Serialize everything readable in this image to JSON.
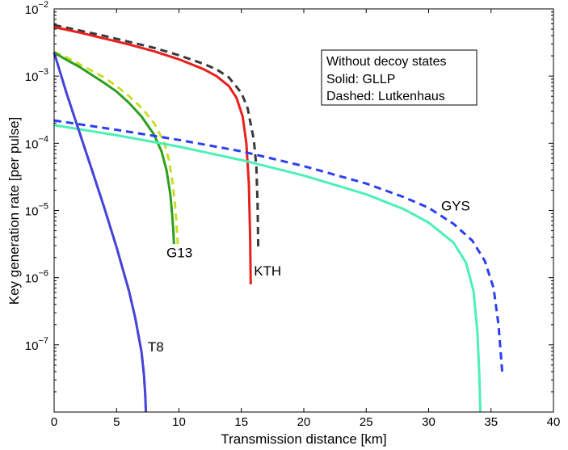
{
  "chart_data": {
    "type": "line",
    "title": "",
    "xlabel": "Transmission distance [km]",
    "ylabel": "Key generation rate [per pulse]",
    "xlim": [
      0,
      40
    ],
    "ylim_log10": [
      -8,
      -2
    ],
    "yscale": "log",
    "grid": false,
    "x_ticks": [
      {
        "value": 0,
        "label": "0"
      },
      {
        "value": 5,
        "label": "5"
      },
      {
        "value": 10,
        "label": "10"
      },
      {
        "value": 15,
        "label": "15"
      },
      {
        "value": 20,
        "label": "20"
      },
      {
        "value": 25,
        "label": "25"
      },
      {
        "value": 30,
        "label": "30"
      },
      {
        "value": 35,
        "label": "35"
      },
      {
        "value": 40,
        "label": "40"
      }
    ],
    "y_ticks": [
      {
        "exp": -2,
        "base": "10",
        "power": "−2"
      },
      {
        "exp": -3,
        "base": "10",
        "power": "−3"
      },
      {
        "exp": -4,
        "base": "10",
        "power": "−4"
      },
      {
        "exp": -5,
        "base": "10",
        "power": "−5"
      },
      {
        "exp": -6,
        "base": "10",
        "power": "−6"
      },
      {
        "exp": -7,
        "base": "10",
        "power": "−7"
      }
    ],
    "legend": {
      "placement": "top-right",
      "lines": [
        "Without decoy states",
        "Solid: GLLP",
        "Dashed: Lutkenhaus"
      ]
    },
    "series": [
      {
        "name": "KTH Lutkenhaus",
        "color": "#3a3a3a",
        "style": "dashed",
        "x": [
          0,
          2,
          4,
          6,
          8,
          10,
          12,
          13,
          14,
          15,
          15.5,
          16.0,
          16.2,
          16.3,
          16.35
        ],
        "log10_y": [
          -2.24,
          -2.32,
          -2.4,
          -2.49,
          -2.58,
          -2.69,
          -2.82,
          -2.9,
          -3.02,
          -3.25,
          -3.48,
          -3.95,
          -4.35,
          -4.9,
          -5.55
        ]
      },
      {
        "name": "KTH GLLP",
        "color": "#e8201c",
        "style": "solid",
        "x": [
          0,
          2,
          4,
          6,
          8,
          10,
          12,
          13,
          14,
          14.6,
          15.1,
          15.4,
          15.6,
          15.7,
          15.75
        ],
        "log10_y": [
          -2.27,
          -2.35,
          -2.44,
          -2.53,
          -2.63,
          -2.75,
          -2.9,
          -3.0,
          -3.15,
          -3.32,
          -3.6,
          -4.0,
          -4.6,
          -5.4,
          -6.1
        ]
      },
      {
        "name": "G13 Lutkenhaus",
        "color": "#c9dd2a",
        "style": "dashed",
        "x": [
          0,
          1,
          2,
          3,
          4,
          5,
          6,
          7,
          8,
          8.8,
          9.2,
          9.5,
          9.7,
          9.8,
          9.9
        ],
        "log10_y": [
          -2.64,
          -2.72,
          -2.82,
          -2.92,
          -3.02,
          -3.15,
          -3.3,
          -3.47,
          -3.7,
          -3.98,
          -4.25,
          -4.6,
          -4.95,
          -5.2,
          -5.5
        ]
      },
      {
        "name": "G13 GLLP",
        "color": "#2e9e1e",
        "style": "solid",
        "x": [
          0,
          1,
          2,
          3,
          4,
          5,
          6,
          7,
          8,
          8.6,
          9.0,
          9.3,
          9.45,
          9.55,
          9.6
        ],
        "log10_y": [
          -2.65,
          -2.76,
          -2.86,
          -2.98,
          -3.1,
          -3.23,
          -3.4,
          -3.6,
          -3.87,
          -4.12,
          -4.4,
          -4.75,
          -5.05,
          -5.3,
          -5.5
        ]
      },
      {
        "name": "GYS Lutkenhaus",
        "color": "#2b3ff0",
        "style": "dashed",
        "x": [
          0,
          5,
          10,
          15,
          20,
          25,
          28,
          30,
          32,
          33.5,
          34.5,
          35.2,
          35.6,
          35.9
        ],
        "log10_y": [
          -3.66,
          -3.8,
          -3.95,
          -4.12,
          -4.34,
          -4.6,
          -4.8,
          -4.96,
          -5.2,
          -5.45,
          -5.75,
          -6.15,
          -6.7,
          -7.42
        ]
      },
      {
        "name": "GYS GLLP",
        "color": "#4cf0b4",
        "style": "solid",
        "x": [
          0,
          5,
          10,
          15,
          20,
          25,
          28,
          30,
          32,
          33,
          33.6,
          33.9,
          34.05,
          34.15
        ],
        "log10_y": [
          -3.73,
          -3.88,
          -4.05,
          -4.25,
          -4.48,
          -4.76,
          -4.98,
          -5.18,
          -5.48,
          -5.78,
          -6.2,
          -6.8,
          -7.4,
          -8.0
        ]
      },
      {
        "name": "T8 Lutkenhaus",
        "color": "#e04ad8",
        "style": "dashed",
        "x": [
          0,
          1,
          2,
          3,
          4,
          5,
          6,
          6.5,
          7,
          7.2,
          7.3,
          7.35
        ],
        "log10_y": [
          -2.65,
          -3.26,
          -3.82,
          -4.38,
          -4.95,
          -5.55,
          -6.2,
          -6.6,
          -7.1,
          -7.45,
          -7.75,
          -8.0
        ]
      },
      {
        "name": "T8 GLLP",
        "color": "#4545d8",
        "style": "solid",
        "x": [
          0,
          1,
          2,
          3,
          4,
          5,
          6,
          6.5,
          7,
          7.2,
          7.3,
          7.35
        ],
        "log10_y": [
          -2.65,
          -3.26,
          -3.82,
          -4.38,
          -4.95,
          -5.55,
          -6.2,
          -6.6,
          -7.1,
          -7.45,
          -7.75,
          -8.0
        ]
      }
    ],
    "annotations": [
      {
        "text": "KTH",
        "x": 16.0,
        "log10_y": -5.97
      },
      {
        "text": "G13",
        "x": 9.0,
        "log10_y": -5.7
      },
      {
        "text": "GYS",
        "x": 31.0,
        "log10_y": -5.0
      },
      {
        "text": "T8",
        "x": 7.5,
        "log10_y": -7.1
      }
    ]
  }
}
